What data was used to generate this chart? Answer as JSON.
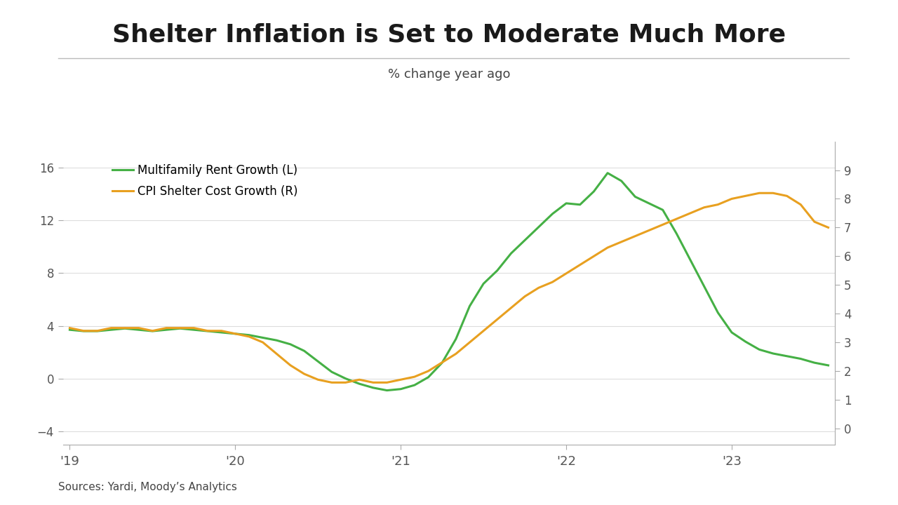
{
  "title": "Shelter Inflation is Set to Moderate Much More",
  "subtitle": "% change year ago",
  "source_text": "Sources: Yardi, Moody’s Analytics",
  "legend": [
    "Multifamily Rent Growth (L)",
    "CPI Shelter Cost Growth (R)"
  ],
  "line_colors": [
    "#45b045",
    "#e8a020"
  ],
  "background_color": "#ffffff",
  "title_fontsize": 26,
  "subtitle_fontsize": 13,
  "left_ylim": [
    -5,
    18
  ],
  "right_ylim": [
    -0.556,
    10.0
  ],
  "left_yticks": [
    -4,
    0,
    4,
    8,
    12,
    16
  ],
  "right_yticks": [
    0,
    1,
    2,
    3,
    4,
    5,
    6,
    7,
    8,
    9
  ],
  "x_tick_labels": [
    "'19",
    "'20",
    "'21",
    "'22",
    "'23"
  ],
  "green_y": [
    3.7,
    3.6,
    3.6,
    3.7,
    3.8,
    3.7,
    3.6,
    3.7,
    3.8,
    3.7,
    3.6,
    3.5,
    3.4,
    3.3,
    3.1,
    2.9,
    2.6,
    2.1,
    1.3,
    0.5,
    0.0,
    -0.4,
    -0.7,
    -0.9,
    -0.8,
    -0.5,
    0.1,
    1.2,
    3.0,
    5.5,
    7.2,
    8.2,
    9.5,
    10.5,
    11.5,
    12.5,
    13.3,
    13.2,
    14.2,
    15.6,
    15.0,
    13.8,
    13.3,
    12.8,
    11.0,
    9.0,
    7.0,
    5.0,
    3.5,
    2.8,
    2.2,
    1.9,
    1.7,
    1.5,
    1.2,
    1.0
  ],
  "orange_y": [
    3.5,
    3.4,
    3.4,
    3.5,
    3.5,
    3.5,
    3.4,
    3.5,
    3.5,
    3.5,
    3.4,
    3.4,
    3.3,
    3.2,
    3.0,
    2.6,
    2.2,
    1.9,
    1.7,
    1.6,
    1.6,
    1.7,
    1.6,
    1.6,
    1.7,
    1.8,
    2.0,
    2.3,
    2.6,
    3.0,
    3.4,
    3.8,
    4.2,
    4.6,
    4.9,
    5.1,
    5.4,
    5.7,
    6.0,
    6.3,
    6.5,
    6.7,
    6.9,
    7.1,
    7.3,
    7.5,
    7.7,
    7.8,
    8.0,
    8.1,
    8.2,
    8.2,
    8.1,
    7.8,
    7.2,
    7.0
  ]
}
